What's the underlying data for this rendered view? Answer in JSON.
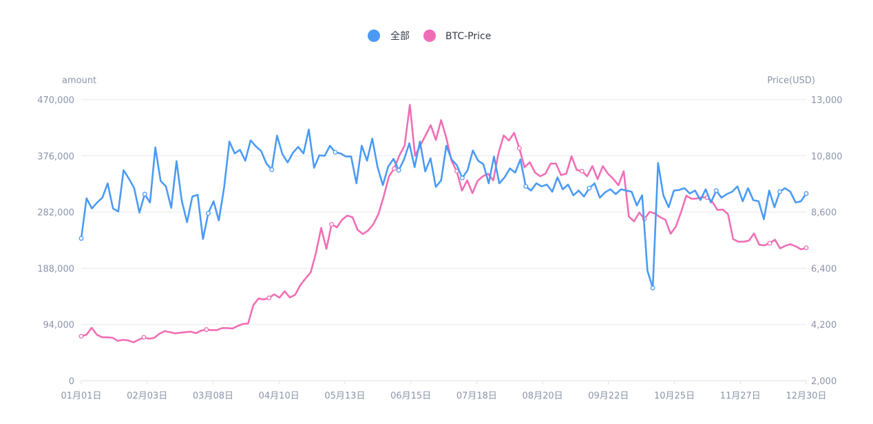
{
  "chart_data": {
    "type": "line",
    "legend": {
      "position": "top-center"
    },
    "y_left": {
      "label": "amount",
      "min": 0,
      "max": 470000,
      "ticks": [
        "470,000",
        "376,000",
        "282,000",
        "188,000",
        "94,000",
        "0"
      ],
      "tick_values": [
        470000,
        376000,
        282000,
        188000,
        94000,
        0
      ]
    },
    "y_right": {
      "label": "Price(USD)",
      "min": 2000,
      "max": 13000,
      "ticks": [
        "13,000",
        "10,800",
        "8,600",
        "6,400",
        "4,200",
        "2,000"
      ],
      "tick_values": [
        13000,
        10800,
        8600,
        6400,
        4200,
        2000
      ]
    },
    "x": {
      "categories": [
        "01月01日",
        "02月03日",
        "03月08日",
        "04月10日",
        "05月13日",
        "06月15日",
        "07月18日",
        "08月20日",
        "09月22日",
        "10月25日",
        "11月27日",
        "12月30日"
      ]
    },
    "grid": true,
    "series": [
      {
        "name": "全部",
        "axis": "left",
        "color": "#4a9af4",
        "values": [
          238000,
          305000,
          288000,
          298000,
          306000,
          330000,
          288000,
          283000,
          352000,
          338000,
          322000,
          281000,
          312000,
          298000,
          390000,
          334000,
          325000,
          289000,
          367000,
          301000,
          265000,
          308000,
          311000,
          237000,
          280000,
          300000,
          268000,
          323000,
          400000,
          380000,
          386000,
          368000,
          402000,
          392000,
          384000,
          363000,
          353000,
          410000,
          379000,
          365000,
          381000,
          391000,
          380000,
          420000,
          356000,
          377000,
          376000,
          393000,
          382000,
          380000,
          375000,
          375000,
          330000,
          393000,
          368000,
          405000,
          357000,
          327000,
          358000,
          371000,
          352000,
          370000,
          397000,
          357000,
          400000,
          350000,
          372000,
          324000,
          335000,
          393000,
          370000,
          360000,
          339000,
          352000,
          385000,
          368000,
          362000,
          330000,
          375000,
          330000,
          340000,
          355000,
          348000,
          370000,
          325000,
          318000,
          330000,
          325000,
          328000,
          316000,
          340000,
          320000,
          328000,
          310000,
          318000,
          308000,
          322000,
          330000,
          306000,
          315000,
          320000,
          312000,
          320000,
          318000,
          316000,
          293000,
          310000,
          184000,
          155000,
          364000,
          310000,
          290000,
          318000,
          319000,
          322000,
          313000,
          318000,
          302000,
          320000,
          298000,
          318000,
          306000,
          312000,
          316000,
          325000,
          300000,
          322000,
          302000,
          300000,
          270000,
          318000,
          290000,
          316000,
          322000,
          316000,
          298000,
          300000,
          313000
        ]
      },
      {
        "name": "BTC-Price",
        "axis": "right",
        "color": "#f06db5",
        "values": [
          3740,
          3800,
          4070,
          3800,
          3700,
          3700,
          3680,
          3560,
          3600,
          3580,
          3500,
          3600,
          3700,
          3640,
          3680,
          3840,
          3940,
          3900,
          3850,
          3880,
          3900,
          3920,
          3860,
          3960,
          4000,
          3980,
          3980,
          4060,
          4060,
          4040,
          4140,
          4220,
          4240,
          4960,
          5220,
          5180,
          5240,
          5380,
          5250,
          5500,
          5260,
          5360,
          5740,
          6000,
          6240,
          7000,
          7980,
          7160,
          8120,
          8000,
          8300,
          8460,
          8400,
          7900,
          7740,
          7880,
          8120,
          8530,
          9220,
          10000,
          10300,
          10820,
          11200,
          12800,
          10800,
          11200,
          11600,
          12000,
          11420,
          12200,
          11500,
          10600,
          10200,
          9440,
          9840,
          9340,
          9820,
          10000,
          10100,
          9840,
          10900,
          11600,
          11400,
          11700,
          11100,
          10350,
          10550,
          10150,
          10000,
          10100,
          10500,
          10500,
          10050,
          10100,
          10780,
          10250,
          10200,
          10000,
          10400,
          9890,
          10400,
          10100,
          9900,
          9650,
          10200,
          8420,
          8240,
          8580,
          8340,
          8610,
          8540,
          8400,
          8300,
          7750,
          8030,
          8600,
          9240,
          9120,
          9130,
          9180,
          9170,
          9000,
          8680,
          8700,
          8520,
          7540,
          7440,
          7440,
          7480,
          7760,
          7320,
          7300,
          7380,
          7520,
          7180,
          7280,
          7340,
          7260,
          7140,
          7200
        ]
      }
    ]
  }
}
